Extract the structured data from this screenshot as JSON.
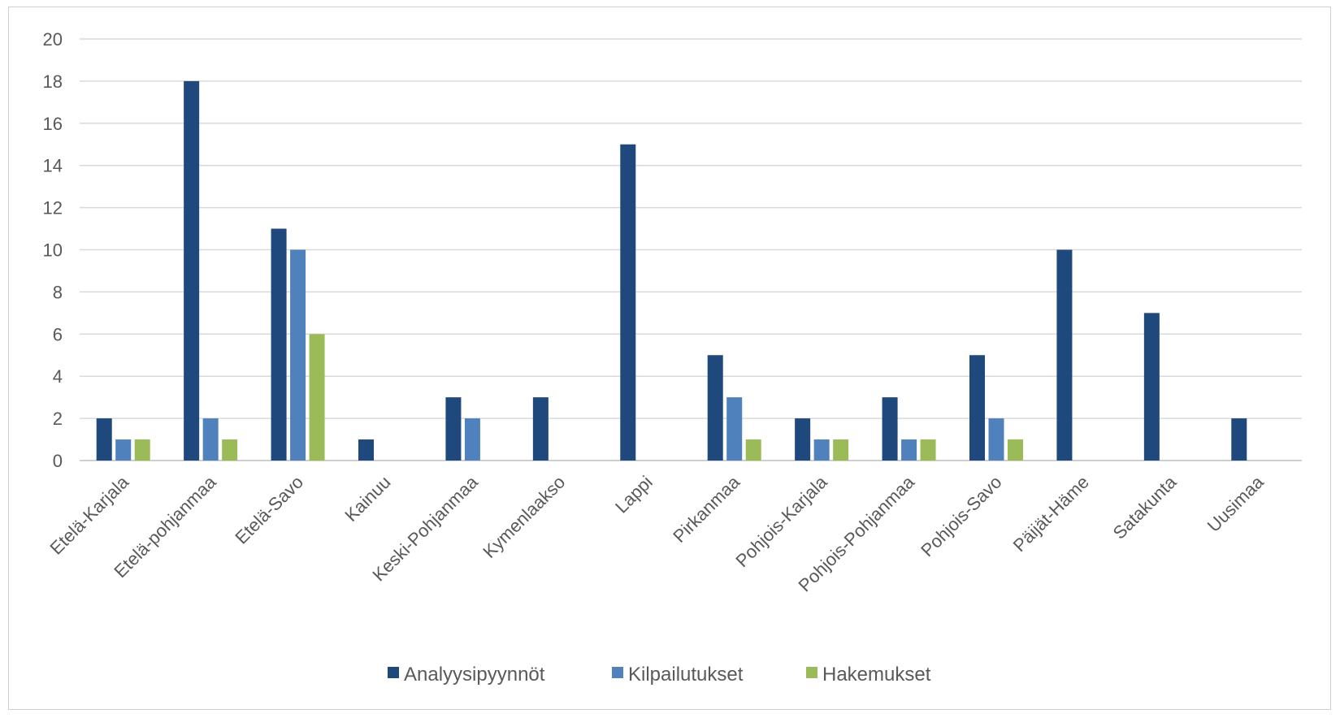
{
  "chart_data": {
    "type": "bar",
    "title": "",
    "xlabel": "",
    "ylabel": "",
    "ylim": [
      0,
      20
    ],
    "yticks": [
      "0",
      "2",
      "4",
      "6",
      "8",
      "10",
      "12",
      "14",
      "16",
      "18",
      "20"
    ],
    "grid": true,
    "legend_position": "bottom",
    "categories": [
      "Etelä-Karjala",
      "Etelä-pohjanmaa",
      "Etelä-Savo",
      "Kainuu",
      "Keski-Pohjanmaa",
      "Kymenlaakso",
      "Lappi",
      "Pirkanmaa",
      "Pohjois-Karjala",
      "Pohjois-Pohjanmaa",
      "Pohjois-Savo",
      "Päijät-Häme",
      "Satakunta",
      "Uusimaa"
    ],
    "series": [
      {
        "name": "Analyysipyynnöt",
        "color": "#1f497d",
        "values": [
          2,
          18,
          11,
          1,
          3,
          3,
          15,
          5,
          2,
          3,
          5,
          10,
          7,
          2
        ]
      },
      {
        "name": "Kilpailutukset",
        "color": "#4f81bd",
        "values": [
          1,
          2,
          10,
          0,
          2,
          0,
          0,
          3,
          1,
          1,
          2,
          0,
          0,
          0
        ]
      },
      {
        "name": "Hakemukset",
        "color": "#9bbb59",
        "values": [
          1,
          1,
          6,
          0,
          0,
          0,
          0,
          1,
          1,
          1,
          1,
          0,
          0,
          0
        ]
      }
    ]
  }
}
